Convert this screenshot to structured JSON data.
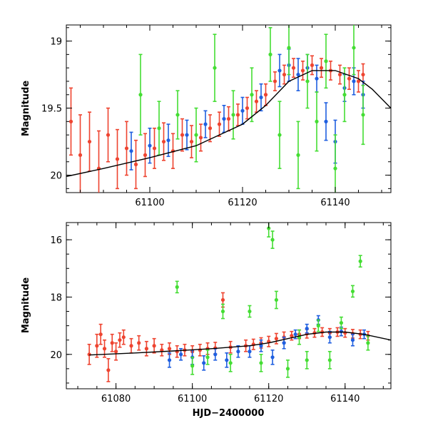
{
  "chart_data": [
    {
      "type": "scatter",
      "panel": "top",
      "title": "",
      "xlabel": "",
      "ylabel": "Magnitude",
      "xlim": [
        61082,
        61152
      ],
      "ylim": [
        20.13,
        18.88
      ],
      "y_inverted": true,
      "xticks": [
        61100,
        61120,
        61140
      ],
      "xtick_labels": [
        "61100",
        "61120",
        "61140"
      ],
      "yticks": [
        19,
        19.5,
        20
      ],
      "ytick_labels": [
        "19",
        "19.5",
        "20"
      ],
      "colors": {
        "red": "#ee4430",
        "blue": "#1f5fe0",
        "green": "#44dd33",
        "curve": "#000000"
      },
      "model_curve": {
        "x": [
          61082,
          61090,
          61100,
          61110,
          61120,
          61125,
          61130,
          61135,
          61140,
          61145,
          61148,
          61152
        ],
        "y": [
          20.01,
          19.95,
          19.87,
          19.78,
          19.62,
          19.48,
          19.3,
          19.22,
          19.22,
          19.28,
          19.36,
          19.5
        ]
      },
      "series": [
        {
          "name": "red",
          "color": "#ee4430",
          "points": [
            [
              61083,
              19.6,
              0.25
            ],
            [
              61085,
              19.85,
              0.3
            ],
            [
              61087,
              19.75,
              0.22
            ],
            [
              61089,
              19.95,
              0.28
            ],
            [
              61091,
              19.7,
              0.2
            ],
            [
              61093,
              19.88,
              0.22
            ],
            [
              61095,
              19.8,
              0.2
            ],
            [
              61097,
              19.92,
              0.18
            ],
            [
              61099,
              19.85,
              0.16
            ],
            [
              61101,
              19.8,
              0.15
            ],
            [
              61103,
              19.75,
              0.14
            ],
            [
              61105,
              19.82,
              0.13
            ],
            [
              61107,
              19.7,
              0.12
            ],
            [
              61109,
              19.75,
              0.12
            ],
            [
              61111,
              19.72,
              0.1
            ],
            [
              61113,
              19.65,
              0.1
            ],
            [
              61115,
              19.62,
              0.09
            ],
            [
              61117,
              19.58,
              0.09
            ],
            [
              61119,
              19.55,
              0.08
            ],
            [
              61121,
              19.5,
              0.08
            ],
            [
              61123,
              19.45,
              0.08
            ],
            [
              61125,
              19.4,
              0.08
            ],
            [
              61127,
              19.3,
              0.07
            ],
            [
              61129,
              19.25,
              0.07
            ],
            [
              61131,
              19.2,
              0.07
            ],
            [
              61133,
              19.22,
              0.07
            ],
            [
              61135,
              19.18,
              0.07
            ],
            [
              61137,
              19.2,
              0.07
            ],
            [
              61139,
              19.22,
              0.07
            ],
            [
              61141,
              19.25,
              0.07
            ],
            [
              61143,
              19.28,
              0.08
            ],
            [
              61145,
              19.3,
              0.08
            ],
            [
              61146,
              19.25,
              0.08
            ]
          ]
        },
        {
          "name": "blue",
          "color": "#1f5fe0",
          "points": [
            [
              61096,
              19.82,
              0.14
            ],
            [
              61100,
              19.78,
              0.13
            ],
            [
              61104,
              19.74,
              0.12
            ],
            [
              61108,
              19.7,
              0.11
            ],
            [
              61112,
              19.62,
              0.1
            ],
            [
              61116,
              19.58,
              0.1
            ],
            [
              61120,
              19.52,
              0.1
            ],
            [
              61124,
              19.42,
              0.1
            ],
            [
              61128,
              19.22,
              0.12
            ],
            [
              61130,
              19.18,
              0.12
            ],
            [
              61132,
              19.25,
              0.12
            ],
            [
              61134,
              19.2,
              0.1
            ],
            [
              61136,
              19.28,
              0.1
            ],
            [
              61138,
              19.6,
              0.14
            ],
            [
              61140,
              19.75,
              0.16
            ],
            [
              61142,
              19.35,
              0.1
            ],
            [
              61144,
              19.3,
              0.1
            ],
            [
              61146,
              19.4,
              0.1
            ]
          ]
        },
        {
          "name": "green",
          "color": "#44dd33",
          "points": [
            [
              61098,
              19.4,
              0.3
            ],
            [
              61102,
              19.65,
              0.2
            ],
            [
              61106,
              19.55,
              0.18
            ],
            [
              61110,
              19.7,
              0.2
            ],
            [
              61114,
              19.2,
              0.25
            ],
            [
              61118,
              19.55,
              0.18
            ],
            [
              61122,
              19.4,
              0.2
            ],
            [
              61126,
              19.1,
              0.2
            ],
            [
              61128,
              19.7,
              0.25
            ],
            [
              61130,
              19.05,
              0.2
            ],
            [
              61132,
              19.85,
              0.25
            ],
            [
              61134,
              19.3,
              0.2
            ],
            [
              61136,
              19.6,
              0.22
            ],
            [
              61138,
              19.15,
              0.2
            ],
            [
              61140,
              19.95,
              0.25
            ],
            [
              61142,
              19.4,
              0.2
            ],
            [
              61144,
              19.05,
              0.2
            ],
            [
              61146,
              19.55,
              0.22
            ]
          ]
        }
      ]
    },
    {
      "type": "scatter",
      "panel": "bottom",
      "title": "",
      "xlabel": "HJD−2400000",
      "ylabel": "Magnitude",
      "xlim": [
        61067,
        61152
      ],
      "ylim": [
        21.2,
        15.4
      ],
      "y_inverted": true,
      "xticks": [
        61080,
        61100,
        61120,
        61140
      ],
      "xtick_labels": [
        "61080",
        "61100",
        "61120",
        "61140"
      ],
      "yticks": [
        16,
        18,
        20
      ],
      "ytick_labels": [
        "16",
        "18",
        "20"
      ],
      "colors": {
        "red": "#ee4430",
        "blue": "#1f5fe0",
        "green": "#44dd33",
        "curve": "#000000"
      },
      "model_curve": {
        "x": [
          61073,
          61085,
          61095,
          61105,
          61115,
          61120,
          61125,
          61130,
          61135,
          61140,
          61145,
          61152
        ],
        "y": [
          20.02,
          19.95,
          19.88,
          19.8,
          19.7,
          19.6,
          19.45,
          19.3,
          19.22,
          19.22,
          19.3,
          19.5
        ]
      },
      "series": [
        {
          "name": "red",
          "color": "#ee4430",
          "points": [
            [
              61073,
              20.0,
              0.35
            ],
            [
              61075,
              19.7,
              0.4
            ],
            [
              61076,
              19.3,
              0.35
            ],
            [
              61077,
              19.8,
              0.3
            ],
            [
              61078,
              20.55,
              0.4
            ],
            [
              61079,
              19.6,
              0.3
            ],
            [
              61080,
              19.9,
              0.3
            ],
            [
              61081,
              19.5,
              0.25
            ],
            [
              61082,
              19.4,
              0.25
            ],
            [
              61084,
              19.7,
              0.25
            ],
            [
              61086,
              19.6,
              0.25
            ],
            [
              61088,
              19.8,
              0.25
            ],
            [
              61090,
              19.7,
              0.25
            ],
            [
              61092,
              19.85,
              0.2
            ],
            [
              61094,
              19.8,
              0.2
            ],
            [
              61096,
              19.9,
              0.2
            ],
            [
              61098,
              19.85,
              0.2
            ],
            [
              61100,
              19.9,
              0.2
            ],
            [
              61102,
              19.85,
              0.2
            ],
            [
              61104,
              19.8,
              0.2
            ],
            [
              61106,
              19.78,
              0.2
            ],
            [
              61108,
              18.1,
              0.25
            ],
            [
              61110,
              19.75,
              0.2
            ],
            [
              61114,
              19.7,
              0.2
            ],
            [
              61116,
              19.65,
              0.18
            ],
            [
              61118,
              19.6,
              0.18
            ],
            [
              61120,
              19.55,
              0.18
            ],
            [
              61122,
              19.45,
              0.18
            ],
            [
              61124,
              19.4,
              0.18
            ],
            [
              61126,
              19.35,
              0.15
            ],
            [
              61128,
              19.3,
              0.15
            ],
            [
              61130,
              19.28,
              0.15
            ],
            [
              61132,
              19.25,
              0.15
            ],
            [
              61134,
              19.22,
              0.15
            ],
            [
              61136,
              19.25,
              0.15
            ],
            [
              61138,
              19.22,
              0.15
            ],
            [
              61140,
              19.25,
              0.15
            ],
            [
              61142,
              19.28,
              0.15
            ],
            [
              61144,
              19.3,
              0.15
            ],
            [
              61146,
              19.35,
              0.15
            ]
          ]
        },
        {
          "name": "blue",
          "color": "#1f5fe0",
          "points": [
            [
              61094,
              20.2,
              0.25
            ],
            [
              61097,
              20.0,
              0.2
            ],
            [
              61100,
              20.1,
              0.25
            ],
            [
              61103,
              20.3,
              0.25
            ],
            [
              61106,
              20.0,
              0.2
            ],
            [
              61109,
              20.2,
              0.25
            ],
            [
              61112,
              19.9,
              0.2
            ],
            [
              61115,
              19.9,
              0.2
            ],
            [
              61118,
              19.7,
              0.2
            ],
            [
              61121,
              20.1,
              0.25
            ],
            [
              61124,
              19.6,
              0.2
            ],
            [
              61127,
              19.3,
              0.15
            ],
            [
              61130,
              19.1,
              0.15
            ],
            [
              61133,
              18.8,
              0.15
            ],
            [
              61136,
              19.4,
              0.2
            ],
            [
              61139,
              19.2,
              0.15
            ],
            [
              61142,
              19.5,
              0.2
            ],
            [
              61145,
              19.3,
              0.15
            ]
          ]
        },
        {
          "name": "green",
          "color": "#44dd33",
          "points": [
            [
              61096,
              17.65,
              0.2
            ],
            [
              61100,
              20.4,
              0.3
            ],
            [
              61104,
              20.1,
              0.25
            ],
            [
              61108,
              18.5,
              0.25
            ],
            [
              61110,
              20.3,
              0.3
            ],
            [
              61115,
              18.5,
              0.2
            ],
            [
              61118,
              20.3,
              0.3
            ],
            [
              61120,
              15.6,
              0.3
            ],
            [
              61121,
              16.0,
              0.3
            ],
            [
              61122,
              18.1,
              0.3
            ],
            [
              61125,
              20.5,
              0.3
            ],
            [
              61128,
              19.4,
              0.25
            ],
            [
              61130,
              20.2,
              0.3
            ],
            [
              61133,
              19.0,
              0.2
            ],
            [
              61136,
              20.2,
              0.3
            ],
            [
              61139,
              18.9,
              0.2
            ],
            [
              61142,
              17.8,
              0.2
            ],
            [
              61144,
              16.75,
              0.2
            ],
            [
              61146,
              19.6,
              0.25
            ]
          ]
        }
      ]
    }
  ]
}
